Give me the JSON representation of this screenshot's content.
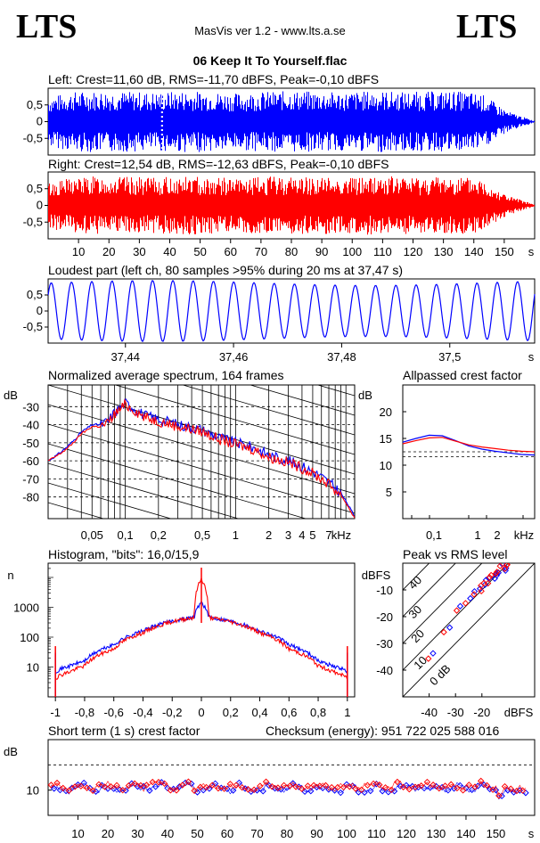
{
  "header": {
    "logo_left": "LTS",
    "logo_right": "LTS",
    "app_title": "MasVis ver 1.2 - www.lts.a.se",
    "file_title": "06 Keep It To Yourself.flac"
  },
  "panels": {
    "left_wave": "Left: Crest=11,60 dB, RMS=-11,70 dBFS, Peak=-0,10 dBFS",
    "right_wave": "Right: Crest=12,54 dB, RMS=-12,63 dBFS, Peak=-0,10 dBFS",
    "loudest": "Loudest part (left  ch, 80 samples >95% during 20 ms at 37,47 s)",
    "spectrum": "Normalized average spectrum, 164 frames",
    "allpass": "Allpassed crest factor",
    "histogram": "Histogram, \"bits\": 16,0/15,9",
    "peak_rms": "Peak vs RMS level",
    "short_term": "Short term (1 s) crest factor",
    "checksum": "Checksum (energy):  951 722 025 588 016"
  },
  "colors": {
    "left": "#0000ff",
    "right": "#ff0000"
  },
  "chart_data": [
    {
      "type": "area",
      "id": "left_waveform",
      "title": "Left: Crest=11,60 dB, RMS=-11,70 dBFS, Peak=-0,10 dBFS",
      "yticks": [
        "0,5",
        "0",
        "-0,5"
      ],
      "ylim": [
        -1,
        1
      ],
      "xlim": [
        0,
        160
      ],
      "marker_x": 37.47,
      "series": [
        {
          "color": "#0000ff",
          "envelope": [
            0.75,
            0.9,
            0.92,
            0.9,
            0.88,
            0.92,
            0.9,
            0.85,
            0.9,
            0.92,
            0.9,
            0.88,
            0.92,
            0.9,
            0.9,
            0.92,
            0.85,
            0.3,
            0.02
          ]
        }
      ]
    },
    {
      "type": "area",
      "id": "right_waveform",
      "title": "Right: Crest=12,54 dB, RMS=-12,63 dBFS, Peak=-0,10 dBFS",
      "yticks": [
        "0,5",
        "0",
        "-0,5"
      ],
      "ylim": [
        -1,
        1
      ],
      "xlim": [
        0,
        160
      ],
      "xticks": [
        "10",
        "20",
        "30",
        "40",
        "50",
        "60",
        "70",
        "80",
        "90",
        "100",
        "110",
        "120",
        "130",
        "140",
        "150",
        "s"
      ],
      "series": [
        {
          "color": "#ff0000",
          "envelope": [
            0.7,
            0.85,
            0.88,
            0.85,
            0.83,
            0.88,
            0.86,
            0.8,
            0.86,
            0.88,
            0.86,
            0.84,
            0.88,
            0.86,
            0.86,
            0.88,
            0.8,
            0.3,
            0.02
          ]
        }
      ]
    },
    {
      "type": "line",
      "id": "loudest_part",
      "title": "Loudest part (left  ch, 80 samples >95% during 20 ms at 37,47 s)",
      "yticks": [
        "0,5",
        "0",
        "-0,5"
      ],
      "xticks": [
        "37,44",
        "37,46",
        "37,48",
        "37,5",
        "s"
      ],
      "xlim": [
        37.4257,
        37.5157
      ],
      "cycles": 24,
      "amplitude": 0.95,
      "series": [
        {
          "color": "#0000ff"
        }
      ]
    },
    {
      "type": "line",
      "id": "spectrum",
      "title": "Normalized average spectrum, 164 frames",
      "ylabel": "dB",
      "yticks": [
        "-30",
        "-40",
        "-50",
        "-60",
        "-70",
        "-80"
      ],
      "ylim": [
        -92,
        -18
      ],
      "xticks": [
        "0,05",
        "0,1",
        "0,2",
        "0,5",
        "1",
        "2",
        "3",
        "4",
        "5",
        "7",
        "kHz"
      ],
      "xlim": [
        0.02,
        12
      ],
      "xscale": "log",
      "series": [
        {
          "name": "",
          "color": "#0000ff",
          "x": [
            0.02,
            0.03,
            0.04,
            0.05,
            0.06,
            0.07,
            0.08,
            0.1,
            0.15,
            0.2,
            0.3,
            0.5,
            0.7,
            1,
            1.5,
            2,
            3,
            4,
            5,
            7,
            9,
            12
          ],
          "y": [
            -60,
            -52,
            -44,
            -40,
            -40,
            -38,
            -33,
            -28,
            -35,
            -37,
            -40,
            -43,
            -47,
            -50,
            -53,
            -57,
            -60,
            -63,
            -66,
            -72,
            -78,
            -91
          ]
        },
        {
          "name": "",
          "color": "#ff0000",
          "x": [
            0.02,
            0.03,
            0.04,
            0.05,
            0.06,
            0.07,
            0.08,
            0.1,
            0.15,
            0.2,
            0.3,
            0.5,
            0.7,
            1,
            1.5,
            2,
            3,
            4,
            5,
            7,
            9,
            12
          ],
          "y": [
            -60,
            -53,
            -45,
            -41,
            -41,
            -39,
            -34,
            -29,
            -36,
            -38,
            -41,
            -44,
            -48,
            -51,
            -54,
            -58,
            -61,
            -64,
            -67,
            -73,
            -79,
            -92
          ]
        }
      ]
    },
    {
      "type": "line",
      "id": "allpassed_crest",
      "title": "Allpassed crest factor",
      "ylabel": "dB",
      "yticks": [
        "20",
        "15",
        "10",
        "5"
      ],
      "ylim": [
        0,
        25
      ],
      "xticks": [
        "0,1",
        "1",
        "2",
        "kHz"
      ],
      "series": [
        {
          "color": "#0000ff",
          "y": [
            14.3,
            15.0,
            15.6,
            15.5,
            14.6,
            13.6,
            13.0,
            12.6,
            12.3,
            12.0,
            11.9
          ]
        },
        {
          "color": "#ff0000",
          "y": [
            14.0,
            14.6,
            15.1,
            15.2,
            14.5,
            13.8,
            13.4,
            13.1,
            12.8,
            12.6,
            12.5
          ]
        }
      ],
      "reference": [
        12.5,
        11.6
      ]
    },
    {
      "type": "line",
      "id": "histogram",
      "title": "Histogram, \"bits\": 16,0/15,9",
      "ylabel": "n",
      "yscale": "log",
      "yticks": [
        "1000",
        "100",
        "10"
      ],
      "xticks": [
        "-1",
        "-0,8",
        "-0,6",
        "-0,4",
        "-0,2",
        "0",
        "0,2",
        "0,4",
        "0,6",
        "0,8",
        "1"
      ],
      "xlim": [
        -1.05,
        1.05
      ],
      "series": [
        {
          "color": "#0000ff",
          "x": [
            -1,
            -0.98,
            -0.9,
            -0.8,
            -0.6,
            -0.4,
            -0.2,
            -0.05,
            0,
            0.05,
            0.2,
            0.4,
            0.6,
            0.8,
            0.9,
            0.98,
            1
          ],
          "y": [
            7,
            8,
            11,
            16,
            55,
            160,
            350,
            470,
            1500,
            470,
            350,
            160,
            55,
            16,
            11,
            8,
            7
          ]
        },
        {
          "color": "#ff0000",
          "x": [
            -1,
            -0.98,
            -0.9,
            -0.8,
            -0.6,
            -0.4,
            -0.2,
            -0.05,
            0,
            0.05,
            0.2,
            0.4,
            0.6,
            0.8,
            0.9,
            0.98,
            1
          ],
          "y": [
            4,
            5,
            7,
            11,
            40,
            140,
            330,
            460,
            9000,
            460,
            330,
            140,
            40,
            11,
            7,
            5,
            4
          ]
        }
      ]
    },
    {
      "type": "scatter",
      "id": "peak_vs_rms",
      "title": "Peak vs RMS level",
      "ylabel": "dBFS",
      "xlabel": "dBFS",
      "yticks": [
        "-10",
        "-20",
        "-30",
        "-40"
      ],
      "xticks": [
        "-40",
        "-30",
        "-20"
      ],
      "xlim": [
        -50,
        0
      ],
      "ylim": [
        -50,
        0
      ],
      "diagonal_labels": [
        "40",
        "30",
        "20",
        "10",
        "0 dB"
      ],
      "series": [
        {
          "color": "#0000ff",
          "x": [
            -38,
            -33,
            -28,
            -25,
            -22,
            -20,
            -19,
            -18,
            -17,
            -16,
            -15,
            -14,
            -13,
            -12,
            -12,
            -11
          ],
          "y": [
            -33,
            -24,
            -16,
            -14,
            -11,
            -9,
            -8,
            -7,
            -6,
            -5,
            -4,
            -3,
            -3,
            -2,
            -1,
            -1
          ]
        },
        {
          "color": "#ff0000",
          "x": [
            -40,
            -34,
            -29,
            -26,
            -23,
            -21,
            -20,
            -19,
            -18,
            -17,
            -16,
            -15,
            -14,
            -13,
            -12,
            -11,
            -10
          ],
          "y": [
            -36,
            -25,
            -18,
            -15,
            -12,
            -10,
            -9,
            -8,
            -7,
            -6,
            -5,
            -4,
            -3,
            -2,
            -2,
            -1,
            -1
          ]
        }
      ]
    },
    {
      "type": "scatter",
      "id": "short_term_crest",
      "title": "Short term (1 s) crest factor",
      "ylabel": "dB",
      "yticks": [
        "10"
      ],
      "ylim": [
        5,
        20
      ],
      "xlim": [
        0,
        163
      ],
      "xticks": [
        "10",
        "20",
        "30",
        "40",
        "50",
        "60",
        "70",
        "80",
        "90",
        "100",
        "110",
        "120",
        "130",
        "140",
        "150",
        "s"
      ],
      "dashed_level": 15,
      "series": [
        {
          "color": "#0000ff",
          "base": 10.4
        },
        {
          "color": "#ff0000",
          "base": 10.8
        }
      ]
    }
  ]
}
